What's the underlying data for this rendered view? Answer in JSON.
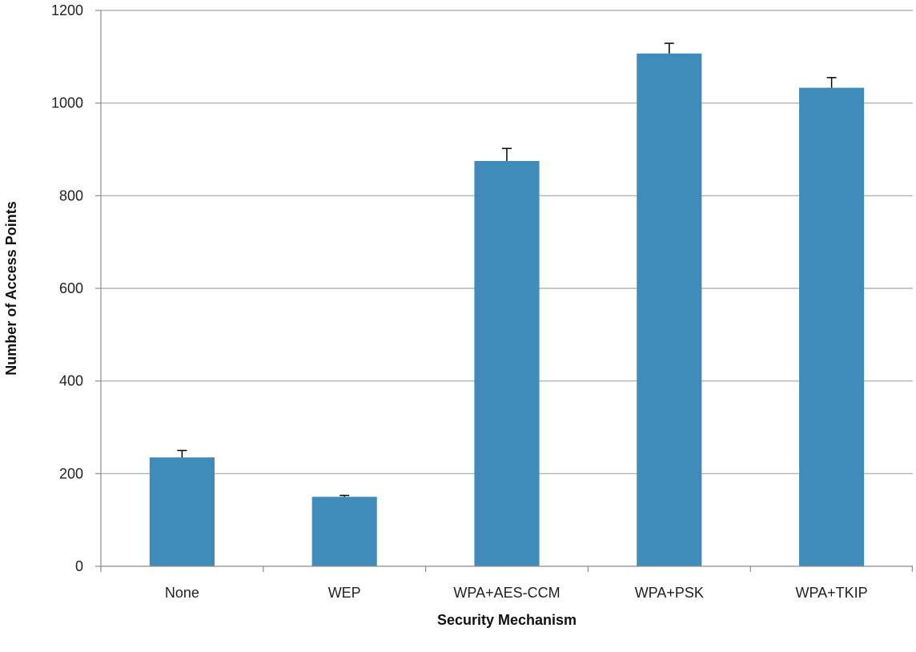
{
  "chart_data": {
    "type": "bar",
    "title": "",
    "xlabel": "Security Mechanism",
    "ylabel": "Number of Access Points",
    "categories": [
      "None",
      "WEP",
      "WPA+AES-CCM",
      "WPA+PSK",
      "WPA+TKIP"
    ],
    "values": [
      235,
      150,
      875,
      1107,
      1033
    ],
    "error_upper": [
      15,
      3,
      27,
      22,
      22
    ],
    "ylim": [
      0,
      1200
    ],
    "yticks": [
      0,
      200,
      400,
      600,
      800,
      1000,
      1200
    ],
    "grid": true,
    "legend": "none",
    "colors": {
      "bar": "#3f8cba",
      "grid": "#a6a6a6",
      "axis": "#8c8c8c",
      "error_bar": "#000000"
    }
  }
}
